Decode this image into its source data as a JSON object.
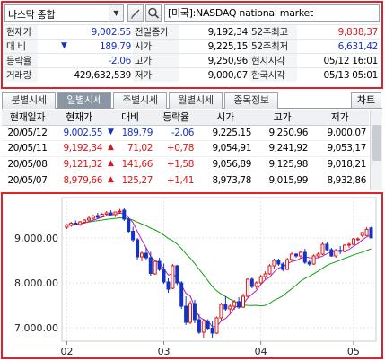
{
  "search": {
    "index_name": "나스닥 종합",
    "market_label": "[미국]:NASDAQ national market"
  },
  "quote": {
    "rows": [
      [
        {
          "l": "현재가"
        },
        {
          "v": "9,002,55",
          "c": "blue"
        },
        {
          "l": "전일종가"
        },
        {
          "v": "9,192,34"
        },
        {
          "l": "52주최고"
        },
        {
          "v": "9,838,37",
          "c": "red"
        }
      ],
      [
        {
          "l": "대  비"
        },
        {
          "s": "▼",
          "v": "189,79",
          "c": "blue"
        },
        {
          "l": "시가"
        },
        {
          "v": "9,225,15"
        },
        {
          "l": "52주최저"
        },
        {
          "v": "6,631,42",
          "c": "blue"
        }
      ],
      [
        {
          "l": "등락율"
        },
        {
          "v": "-2,06",
          "c": "blue"
        },
        {
          "l": "고가"
        },
        {
          "v": "9,250,96"
        },
        {
          "l": "현지시각"
        },
        {
          "v": "05/12 16:01"
        }
      ],
      [
        {
          "l": "거래량"
        },
        {
          "v": "429,632,539"
        },
        {
          "l": "저가"
        },
        {
          "v": "9,000,07"
        },
        {
          "l": "한국시각"
        },
        {
          "v": "05/13 05:01"
        }
      ]
    ]
  },
  "tabs": [
    "분별시세",
    "일별시세",
    "주별시세",
    "월별시세",
    "종목정보"
  ],
  "active_tab": 1,
  "chart_button": "차트",
  "daily": {
    "headers": [
      "현재일자",
      "현재가",
      "대비",
      "등락율",
      "시가",
      "고가",
      "저가"
    ],
    "rows": [
      {
        "date": "20/05/12",
        "close": "9,002,55",
        "sign": "▼",
        "chg": "189,79",
        "pct": "-2,06",
        "open": "9,225,15",
        "high": "9,250,96",
        "low": "9,000,07",
        "dir": "down"
      },
      {
        "date": "20/05/11",
        "close": "9,192,34",
        "sign": "▲",
        "chg": "71,02",
        "pct": "+0,78",
        "open": "9,054,91",
        "high": "9,241,92",
        "low": "9,053,17",
        "dir": "up"
      },
      {
        "date": "20/05/08",
        "close": "9,121,32",
        "sign": "▲",
        "chg": "141,66",
        "pct": "+1,58",
        "open": "9,056,89",
        "high": "9,125,98",
        "low": "9,018,21",
        "dir": "up"
      },
      {
        "date": "20/05/07",
        "close": "8,979,66",
        "sign": "▲",
        "chg": "125,27",
        "pct": "+1,41",
        "open": "8,973,78",
        "high": "9,015,99",
        "low": "8,932,86",
        "dir": "up"
      }
    ]
  },
  "colors": {
    "up": "#d81818",
    "down": "#1532c8",
    "ma5": "#b020b0",
    "ma20": "#10a010"
  },
  "icons": {
    "dropdown": "chevron-down-icon",
    "edit": "pencil-icon",
    "search": "search-icon"
  },
  "chart_data": {
    "type": "candlestick",
    "y_ticks": [
      "9,000.00",
      "8,000.00",
      "7,000.00"
    ],
    "x_ticks": [
      "02",
      "03",
      "04",
      "05"
    ],
    "ylim": [
      6700,
      9900
    ],
    "moving_averages": [
      "ma5",
      "ma20"
    ],
    "candles": [
      {
        "o": 9240,
        "h": 9310,
        "l": 9200,
        "c": 9290
      },
      {
        "o": 9280,
        "h": 9360,
        "l": 9250,
        "c": 9330
      },
      {
        "o": 9330,
        "h": 9390,
        "l": 9280,
        "c": 9300
      },
      {
        "o": 9300,
        "h": 9380,
        "l": 9270,
        "c": 9360
      },
      {
        "o": 9350,
        "h": 9420,
        "l": 9320,
        "c": 9400
      },
      {
        "o": 9400,
        "h": 9480,
        "l": 9360,
        "c": 9440
      },
      {
        "o": 9440,
        "h": 9520,
        "l": 9410,
        "c": 9490
      },
      {
        "o": 9500,
        "h": 9560,
        "l": 9430,
        "c": 9460
      },
      {
        "o": 9470,
        "h": 9560,
        "l": 9450,
        "c": 9530
      },
      {
        "o": 9530,
        "h": 9600,
        "l": 9480,
        "c": 9560
      },
      {
        "o": 9560,
        "h": 9620,
        "l": 9500,
        "c": 9520
      },
      {
        "o": 9520,
        "h": 9590,
        "l": 9470,
        "c": 9580
      },
      {
        "o": 9580,
        "h": 9650,
        "l": 9540,
        "c": 9600
      },
      {
        "o": 9620,
        "h": 9660,
        "l": 9380,
        "c": 9420
      },
      {
        "o": 9420,
        "h": 9450,
        "l": 9120,
        "c": 9150
      },
      {
        "o": 9150,
        "h": 9250,
        "l": 8900,
        "c": 8960
      },
      {
        "o": 8960,
        "h": 9000,
        "l": 8520,
        "c": 8580
      },
      {
        "o": 8580,
        "h": 8700,
        "l": 8480,
        "c": 8660
      },
      {
        "o": 8660,
        "h": 8780,
        "l": 8500,
        "c": 8560
      },
      {
        "o": 8560,
        "h": 8690,
        "l": 8160,
        "c": 8210
      },
      {
        "o": 8200,
        "h": 8520,
        "l": 8180,
        "c": 8480
      },
      {
        "o": 8480,
        "h": 8560,
        "l": 8260,
        "c": 8300
      },
      {
        "o": 8300,
        "h": 8430,
        "l": 7980,
        "c": 8020
      },
      {
        "o": 8020,
        "h": 8100,
        "l": 7780,
        "c": 7860
      },
      {
        "o": 7880,
        "h": 8420,
        "l": 7860,
        "c": 8380
      },
      {
        "o": 8380,
        "h": 8400,
        "l": 7950,
        "c": 8000
      },
      {
        "o": 8000,
        "h": 8040,
        "l": 7420,
        "c": 7480
      },
      {
        "o": 7480,
        "h": 7700,
        "l": 7060,
        "c": 7120
      },
      {
        "o": 7120,
        "h": 7600,
        "l": 7080,
        "c": 7540
      },
      {
        "o": 7540,
        "h": 7620,
        "l": 7100,
        "c": 7180
      },
      {
        "o": 7180,
        "h": 7300,
        "l": 6860,
        "c": 6900
      },
      {
        "o": 6900,
        "h": 7200,
        "l": 6780,
        "c": 7150
      },
      {
        "o": 7150,
        "h": 7190,
        "l": 6950,
        "c": 6990
      },
      {
        "o": 6990,
        "h": 7150,
        "l": 6780,
        "c": 6880
      },
      {
        "o": 6880,
        "h": 7250,
        "l": 6860,
        "c": 7220
      },
      {
        "o": 7220,
        "h": 7560,
        "l": 7150,
        "c": 7520
      },
      {
        "o": 7520,
        "h": 7700,
        "l": 7380,
        "c": 7420
      },
      {
        "o": 7420,
        "h": 7520,
        "l": 7300,
        "c": 7480
      },
      {
        "o": 7480,
        "h": 7620,
        "l": 7400,
        "c": 7580
      },
      {
        "o": 7580,
        "h": 7680,
        "l": 7420,
        "c": 7460
      },
      {
        "o": 7460,
        "h": 7760,
        "l": 7440,
        "c": 7700
      },
      {
        "o": 7700,
        "h": 8100,
        "l": 7680,
        "c": 8080
      },
      {
        "o": 8080,
        "h": 8120,
        "l": 7880,
        "c": 7920
      },
      {
        "o": 7920,
        "h": 8040,
        "l": 7860,
        "c": 8000
      },
      {
        "o": 8000,
        "h": 8180,
        "l": 7960,
        "c": 8140
      },
      {
        "o": 8140,
        "h": 8260,
        "l": 8080,
        "c": 8200
      },
      {
        "o": 8200,
        "h": 8420,
        "l": 8180,
        "c": 8380
      },
      {
        "o": 8380,
        "h": 8540,
        "l": 8320,
        "c": 8500
      },
      {
        "o": 8500,
        "h": 8540,
        "l": 8380,
        "c": 8420
      },
      {
        "o": 8420,
        "h": 8460,
        "l": 8260,
        "c": 8300
      },
      {
        "o": 8300,
        "h": 8560,
        "l": 8280,
        "c": 8520
      },
      {
        "o": 8520,
        "h": 8680,
        "l": 8480,
        "c": 8640
      },
      {
        "o": 8640,
        "h": 8660,
        "l": 8560,
        "c": 8600
      },
      {
        "o": 8600,
        "h": 8720,
        "l": 8540,
        "c": 8680
      },
      {
        "o": 8680,
        "h": 8760,
        "l": 8420,
        "c": 8460
      },
      {
        "o": 8460,
        "h": 8500,
        "l": 8380,
        "c": 8420
      },
      {
        "o": 8420,
        "h": 8640,
        "l": 8400,
        "c": 8600
      },
      {
        "o": 8600,
        "h": 8680,
        "l": 8560,
        "c": 8640
      },
      {
        "o": 8640,
        "h": 8900,
        "l": 8620,
        "c": 8860
      },
      {
        "o": 8860,
        "h": 8920,
        "l": 8700,
        "c": 8740
      },
      {
        "o": 8740,
        "h": 8780,
        "l": 8580,
        "c": 8600
      },
      {
        "o": 8600,
        "h": 8760,
        "l": 8560,
        "c": 8720
      },
      {
        "o": 8720,
        "h": 8820,
        "l": 8640,
        "c": 8700
      },
      {
        "o": 8700,
        "h": 8860,
        "l": 8680,
        "c": 8840
      },
      {
        "o": 8840,
        "h": 8900,
        "l": 8780,
        "c": 8860
      },
      {
        "o": 8860,
        "h": 9000,
        "l": 8840,
        "c": 8980
      },
      {
        "o": 8974,
        "h": 9016,
        "l": 8933,
        "c": 8980
      },
      {
        "o": 9057,
        "h": 9126,
        "l": 9018,
        "c": 9121
      },
      {
        "o": 9055,
        "h": 9242,
        "l": 9053,
        "c": 9192
      },
      {
        "o": 9225,
        "h": 9251,
        "l": 9000,
        "c": 9003
      }
    ]
  }
}
